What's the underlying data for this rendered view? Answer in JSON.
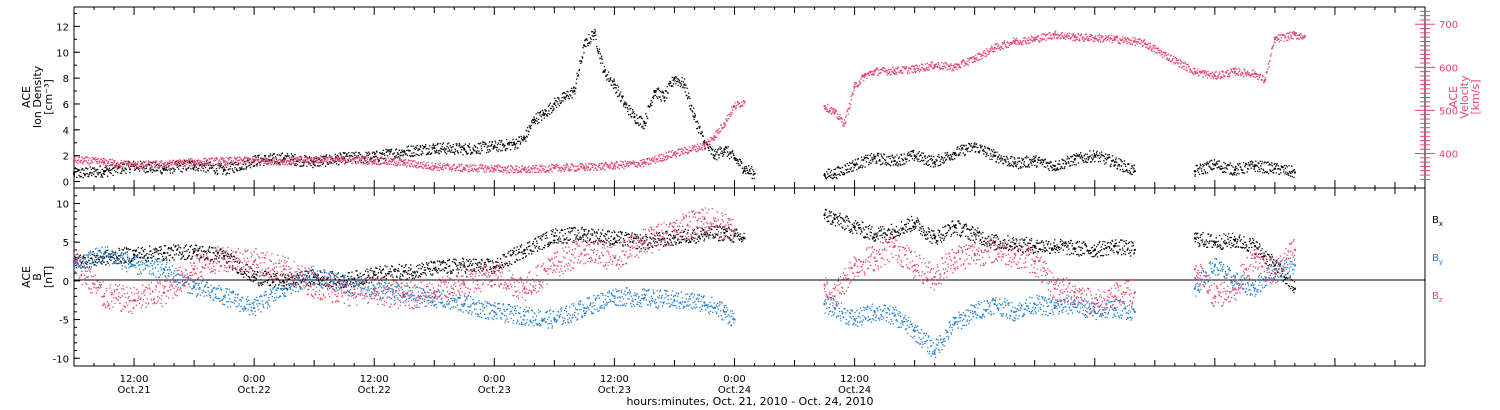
{
  "chart_data": [
    {
      "type": "scatter",
      "title": "",
      "xlabel": "hours:minutes, Oct. 21, 2010 - Oct. 24, 2010",
      "ylabel_left": [
        "ACE",
        "Ion Density",
        "[cm⁻³]"
      ],
      "ylabel_right": [
        "ACE",
        "Velocity",
        "[km/s]"
      ],
      "ylim_left": [
        -0.5,
        13.5
      ],
      "ylim_right": [
        320,
        740
      ],
      "yticks_left": [
        "0",
        "2",
        "4",
        "6",
        "8",
        "10",
        "12"
      ],
      "yticks_right": [
        "400",
        "500",
        "600",
        "700"
      ],
      "colors": {
        "density": "#000000",
        "velocity": "#e8436b"
      },
      "series": [
        {
          "key": "density",
          "color": "#000000",
          "points": [
            [
              6,
              0.6
            ],
            [
              9,
              0.8
            ],
            [
              12,
              1.2
            ],
            [
              15,
              1.0
            ],
            [
              18,
              1.3
            ],
            [
              21,
              0.9
            ],
            [
              24,
              1.6
            ],
            [
              27,
              1.8
            ],
            [
              30,
              1.5
            ],
            [
              33,
              1.8
            ],
            [
              36,
              1.9
            ],
            [
              39,
              2.3
            ],
            [
              42,
              2.6
            ],
            [
              45,
              2.5
            ],
            [
              48,
              2.7
            ],
            [
              50,
              2.9
            ],
            [
              51,
              3.3
            ],
            [
              52,
              4.8
            ],
            [
              53,
              5.2
            ],
            [
              54,
              6.0
            ],
            [
              55,
              6.5
            ],
            [
              56,
              7.0
            ],
            [
              57,
              10.5
            ],
            [
              58,
              11.5
            ],
            [
              59,
              8.5
            ],
            [
              60,
              7.5
            ],
            [
              61,
              6.0
            ],
            [
              62,
              5.0
            ],
            [
              63,
              4.5
            ],
            [
              64,
              7.0
            ],
            [
              65,
              6.5
            ],
            [
              66,
              8.0
            ],
            [
              67,
              7.5
            ],
            [
              68,
              5.0
            ],
            [
              69,
              3.0
            ],
            [
              70,
              2.0
            ],
            [
              71,
              2.5
            ],
            [
              72,
              1.8
            ],
            [
              73,
              1.0
            ],
            [
              74,
              0.6
            ],
            [
              81,
              0.5
            ],
            [
              82,
              0.6
            ],
            [
              84,
              1.3
            ],
            [
              86,
              1.8
            ],
            [
              88,
              1.6
            ],
            [
              90,
              2.0
            ],
            [
              92,
              1.5
            ],
            [
              94,
              2.2
            ],
            [
              96,
              2.7
            ],
            [
              98,
              2.0
            ],
            [
              100,
              1.4
            ],
            [
              102,
              1.6
            ],
            [
              104,
              1.2
            ],
            [
              106,
              1.7
            ],
            [
              108,
              2.0
            ],
            [
              110,
              1.5
            ],
            [
              112,
              0.8
            ],
            [
              118,
              0.8
            ],
            [
              120,
              1.3
            ],
            [
              122,
              0.9
            ],
            [
              124,
              1.2
            ],
            [
              126,
              1.0
            ],
            [
              128,
              0.7
            ]
          ]
        },
        {
          "key": "velocity",
          "color": "#e8436b",
          "points": [
            [
              6,
              385
            ],
            [
              9,
              380
            ],
            [
              12,
              373
            ],
            [
              15,
              375
            ],
            [
              18,
              380
            ],
            [
              21,
              382
            ],
            [
              24,
              384
            ],
            [
              27,
              382
            ],
            [
              30,
              386
            ],
            [
              33,
              385
            ],
            [
              36,
              384
            ],
            [
              39,
              378
            ],
            [
              42,
              370
            ],
            [
              45,
              366
            ],
            [
              48,
              365
            ],
            [
              51,
              362
            ],
            [
              54,
              366
            ],
            [
              57,
              368
            ],
            [
              60,
              372
            ],
            [
              63,
              378
            ],
            [
              66,
              400
            ],
            [
              69,
              418
            ],
            [
              70,
              440
            ],
            [
              71,
              470
            ],
            [
              72,
              510
            ],
            [
              73,
              520
            ],
            [
              81,
              510
            ],
            [
              82,
              495
            ],
            [
              83,
              470
            ],
            [
              84,
              555
            ],
            [
              85,
              580
            ],
            [
              86,
              590
            ],
            [
              88,
              592
            ],
            [
              90,
              596
            ],
            [
              92,
              605
            ],
            [
              94,
              600
            ],
            [
              96,
              620
            ],
            [
              98,
              645
            ],
            [
              100,
              660
            ],
            [
              102,
              665
            ],
            [
              104,
              676
            ],
            [
              106,
              670
            ],
            [
              108,
              668
            ],
            [
              110,
              665
            ],
            [
              112,
              660
            ],
            [
              113,
              655
            ],
            [
              118,
              590
            ],
            [
              120,
              580
            ],
            [
              122,
              590
            ],
            [
              124,
              585
            ],
            [
              125,
              570
            ],
            [
              126,
              665
            ],
            [
              128,
              675
            ],
            [
              129,
              672
            ]
          ]
        }
      ]
    },
    {
      "type": "scatter",
      "title": "",
      "ylabel": [
        "ACE",
        "B",
        "[nT]"
      ],
      "ylim": [
        -11,
        12
      ],
      "yticks": [
        "-10",
        "-5",
        "0",
        "5",
        "10"
      ],
      "legend": [
        "Bx",
        "By",
        "Bz"
      ],
      "legend_placement": "right",
      "colors": {
        "bx": "#000000",
        "by": "#1e7fd4",
        "bz": "#e8436b"
      },
      "series": [
        {
          "key": "bx",
          "color": "#000000",
          "points": [
            [
              6,
              2.5
            ],
            [
              9,
              3.0
            ],
            [
              12,
              3.4
            ],
            [
              15,
              3.6
            ],
            [
              18,
              3.8
            ],
            [
              21,
              3.2
            ],
            [
              24,
              0.5
            ],
            [
              27,
              -0.2
            ],
            [
              30,
              0.5
            ],
            [
              33,
              0.0
            ],
            [
              36,
              0.8
            ],
            [
              39,
              1.2
            ],
            [
              42,
              1.6
            ],
            [
              45,
              2.0
            ],
            [
              48,
              1.8
            ],
            [
              51,
              4.0
            ],
            [
              54,
              5.8
            ],
            [
              57,
              6.0
            ],
            [
              60,
              5.5
            ],
            [
              63,
              5.0
            ],
            [
              66,
              5.6
            ],
            [
              69,
              6.0
            ],
            [
              71,
              6.2
            ],
            [
              72,
              5.8
            ],
            [
              73,
              5.5
            ],
            [
              81,
              8.5
            ],
            [
              82,
              8.0
            ],
            [
              84,
              7.0
            ],
            [
              86,
              6.0
            ],
            [
              88,
              6.5
            ],
            [
              90,
              7.5
            ],
            [
              92,
              5.5
            ],
            [
              94,
              7.0
            ],
            [
              96,
              6.0
            ],
            [
              98,
              5.0
            ],
            [
              100,
              4.8
            ],
            [
              102,
              4.5
            ],
            [
              104,
              4.5
            ],
            [
              106,
              4.2
            ],
            [
              108,
              4.0
            ],
            [
              110,
              4.5
            ],
            [
              112,
              4.0
            ],
            [
              118,
              5.5
            ],
            [
              120,
              5.0
            ],
            [
              122,
              5.2
            ],
            [
              124,
              4.5
            ],
            [
              126,
              2.0
            ],
            [
              128,
              -1.0
            ]
          ]
        },
        {
          "key": "by",
          "color": "#1e7fd4",
          "points": [
            [
              6,
              2.0
            ],
            [
              9,
              3.5
            ],
            [
              12,
              2.0
            ],
            [
              15,
              1.5
            ],
            [
              18,
              -0.8
            ],
            [
              21,
              -2.0
            ],
            [
              24,
              -3.5
            ],
            [
              27,
              -1.0
            ],
            [
              30,
              0.8
            ],
            [
              33,
              -0.5
            ],
            [
              36,
              -1.0
            ],
            [
              39,
              -1.8
            ],
            [
              42,
              -2.2
            ],
            [
              45,
              -3.0
            ],
            [
              48,
              -4.0
            ],
            [
              51,
              -4.5
            ],
            [
              54,
              -5.0
            ],
            [
              57,
              -3.5
            ],
            [
              60,
              -2.0
            ],
            [
              63,
              -2.2
            ],
            [
              66,
              -2.5
            ],
            [
              69,
              -2.8
            ],
            [
              71,
              -4.0
            ],
            [
              72,
              -5.0
            ],
            [
              81,
              -3.0
            ],
            [
              82,
              -3.5
            ],
            [
              84,
              -5.0
            ],
            [
              86,
              -4.0
            ],
            [
              88,
              -4.5
            ],
            [
              90,
              -6.5
            ],
            [
              92,
              -9.0
            ],
            [
              94,
              -5.5
            ],
            [
              96,
              -4.0
            ],
            [
              98,
              -3.0
            ],
            [
              100,
              -4.0
            ],
            [
              102,
              -3.0
            ],
            [
              104,
              -3.5
            ],
            [
              106,
              -3.0
            ],
            [
              108,
              -4.0
            ],
            [
              110,
              -3.5
            ],
            [
              112,
              -4.0
            ],
            [
              118,
              -1.0
            ],
            [
              120,
              2.0
            ],
            [
              122,
              0.0
            ],
            [
              124,
              -1.0
            ],
            [
              126,
              1.5
            ],
            [
              128,
              2.0
            ]
          ]
        },
        {
          "key": "bz",
          "color": "#e8436b",
          "points": [
            [
              6,
              2.5
            ],
            [
              9,
              -2.0
            ],
            [
              12,
              -2.5
            ],
            [
              15,
              -1.5
            ],
            [
              18,
              1.5
            ],
            [
              21,
              3.0
            ],
            [
              24,
              2.5
            ],
            [
              27,
              1.5
            ],
            [
              30,
              -0.5
            ],
            [
              33,
              -1.5
            ],
            [
              36,
              -1.2
            ],
            [
              39,
              -2.0
            ],
            [
              42,
              -1.5
            ],
            [
              45,
              -0.5
            ],
            [
              48,
              1.0
            ],
            [
              51,
              -1.0
            ],
            [
              54,
              2.0
            ],
            [
              57,
              4.0
            ],
            [
              60,
              3.0
            ],
            [
              63,
              5.0
            ],
            [
              66,
              6.5
            ],
            [
              69,
              8.0
            ],
            [
              71,
              7.0
            ],
            [
              72,
              6.5
            ],
            [
              81,
              -0.5
            ],
            [
              82,
              -2.0
            ],
            [
              84,
              2.0
            ],
            [
              86,
              3.0
            ],
            [
              88,
              4.5
            ],
            [
              90,
              2.0
            ],
            [
              92,
              0.5
            ],
            [
              94,
              3.0
            ],
            [
              96,
              3.5
            ],
            [
              98,
              4.0
            ],
            [
              100,
              3.5
            ],
            [
              102,
              2.5
            ],
            [
              104,
              -1.0
            ],
            [
              106,
              -1.5
            ],
            [
              108,
              -3.0
            ],
            [
              110,
              -2.0
            ],
            [
              112,
              -1.5
            ],
            [
              118,
              1.5
            ],
            [
              120,
              -2.0
            ],
            [
              122,
              -1.0
            ],
            [
              124,
              3.0
            ],
            [
              126,
              1.0
            ],
            [
              128,
              4.0
            ]
          ]
        }
      ]
    }
  ],
  "x_axis": {
    "xlim_hours": [
      6,
      141
    ],
    "major_ticks": [
      {
        "h": 12,
        "time": "12:00",
        "date": "Oct.21"
      },
      {
        "h": 24,
        "time": "0:00",
        "date": "Oct.22"
      },
      {
        "h": 36,
        "time": "12:00",
        "date": "Oct.22"
      },
      {
        "h": 48,
        "time": "0:00",
        "date": "Oct.23"
      },
      {
        "h": 60,
        "time": "12:00",
        "date": "Oct.23"
      },
      {
        "h": 72,
        "time": "0:00",
        "date": "Oct.24"
      },
      {
        "h": 84,
        "time": "12:00",
        "date": "Oct.24"
      }
    ]
  },
  "legend_labels": {
    "bx": {
      "base": "B",
      "sub": "x"
    },
    "by": {
      "base": "B",
      "sub": "y"
    },
    "bz": {
      "base": "B",
      "sub": "z"
    }
  }
}
